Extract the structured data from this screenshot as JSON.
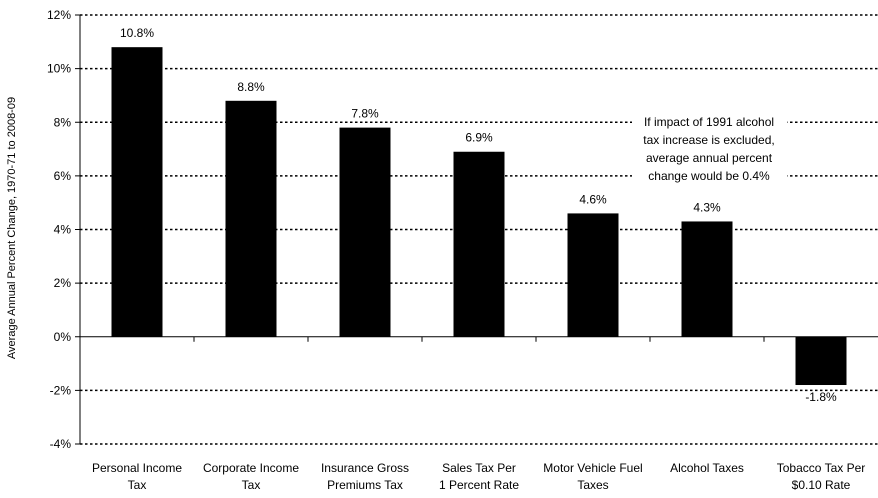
{
  "chart_data": {
    "type": "bar",
    "title": "",
    "xlabel": "",
    "ylabel": "Average Annual Percent Change, 1970-71 to 2008-09",
    "categories": [
      [
        "Personal Income",
        "Tax"
      ],
      [
        "Corporate Income",
        "Tax"
      ],
      [
        "Insurance Gross",
        "Premiums Tax"
      ],
      [
        "Sales Tax Per",
        "1 Percent Rate"
      ],
      [
        "Motor Vehicle Fuel",
        "Taxes"
      ],
      [
        "Alcohol Taxes"
      ],
      [
        "Tobacco Tax Per",
        "$0.10 Rate"
      ]
    ],
    "values": [
      10.8,
      8.8,
      7.8,
      6.9,
      4.6,
      4.3,
      -1.8
    ],
    "data_labels": [
      "10.8%",
      "8.8%",
      "7.8%",
      "6.9%",
      "4.6%",
      "4.3%",
      "-1.8%"
    ],
    "ylim": [
      -4,
      12
    ],
    "yticks": [
      12,
      10,
      8,
      6,
      4,
      2,
      0,
      -2,
      -4
    ],
    "ytick_labels": [
      "12%",
      "10%",
      "8%",
      "6%",
      "4%",
      "2%",
      "0%",
      "-2%",
      "-4%"
    ],
    "grid": true,
    "bar_color": "#000000",
    "annotation": [
      "If impact of 1991 alcohol",
      "tax increase is excluded,",
      "average annual percent",
      "change would be 0.4%"
    ]
  }
}
